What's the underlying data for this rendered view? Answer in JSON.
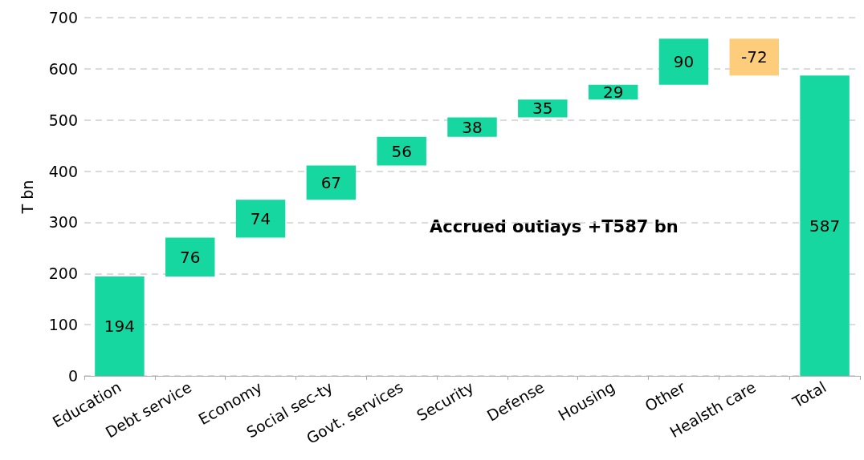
{
  "chart_data": {
    "type": "bar",
    "ylabel": "T bn",
    "categories": [
      "Education",
      "Debt service",
      "Economy",
      "Social sec-ty",
      "Govt. services",
      "Security",
      "Defense",
      "Housing",
      "Other",
      "Healsth care",
      "Total"
    ],
    "values": [
      194,
      76,
      74,
      67,
      56,
      38,
      35,
      29,
      90,
      -72,
      587
    ],
    "base": [
      0,
      194,
      270,
      344,
      411,
      467,
      505,
      540,
      569,
      659,
      0
    ],
    "colors": [
      "#17d7a0",
      "#17d7a0",
      "#17d7a0",
      "#17d7a0",
      "#17d7a0",
      "#17d7a0",
      "#17d7a0",
      "#17d7a0",
      "#17d7a0",
      "#fdcd7c",
      "#17d7a0"
    ],
    "ylim": [
      0,
      700
    ],
    "yticks": [
      0,
      100,
      200,
      300,
      400,
      500,
      600,
      700
    ],
    "grid": "y",
    "data_labels": true,
    "annotations": [
      "Accrued outlays +T587 bn"
    ]
  }
}
